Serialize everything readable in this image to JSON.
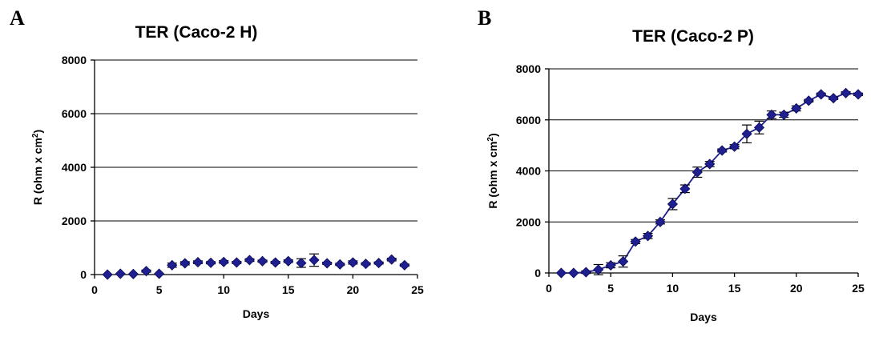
{
  "panels": {
    "a": {
      "letter": "A"
    },
    "b": {
      "letter": "B"
    }
  },
  "chart_data": [
    {
      "type": "line",
      "title": "TER (Caco-2 H)",
      "xlabel": "Days",
      "ylabel": "R (ohm x cm2)",
      "xlim": [
        0,
        25
      ],
      "ylim": [
        0,
        8000
      ],
      "xticks": [
        0,
        5,
        10,
        15,
        20,
        25
      ],
      "yticks": [
        0,
        2000,
        4000,
        6000,
        8000
      ],
      "grid": "horizontal",
      "marker_color": "#1f1f8f",
      "connect_points": false,
      "series": [
        {
          "x": [
            1,
            2,
            3,
            4,
            5,
            6,
            7,
            8,
            9,
            10,
            11,
            12,
            13,
            14,
            15,
            16,
            17,
            18,
            19,
            20,
            21,
            22,
            23,
            24
          ],
          "y": [
            0,
            30,
            20,
            130,
            30,
            350,
            420,
            460,
            440,
            470,
            450,
            540,
            500,
            450,
            500,
            430,
            540,
            420,
            380,
            450,
            400,
            430,
            560,
            350
          ],
          "err": [
            0,
            0,
            0,
            40,
            0,
            80,
            60,
            50,
            40,
            50,
            40,
            50,
            40,
            40,
            50,
            160,
            230,
            40,
            40,
            60,
            40,
            40,
            50,
            40
          ]
        }
      ]
    },
    {
      "type": "line",
      "title": "TER (Caco-2 P)",
      "xlabel": "Days",
      "ylabel": "R (ohm x cm2)",
      "xlim": [
        0,
        25
      ],
      "ylim": [
        0,
        8000
      ],
      "xticks": [
        0,
        5,
        10,
        15,
        20,
        25
      ],
      "yticks": [
        0,
        2000,
        4000,
        6000,
        8000
      ],
      "grid": "horizontal",
      "marker_color": "#1f1f8f",
      "connect_points": true,
      "series": [
        {
          "x": [
            1,
            2,
            3,
            4,
            5,
            6,
            7,
            8,
            9,
            10,
            11,
            12,
            13,
            14,
            15,
            16,
            17,
            18,
            19,
            20,
            21,
            22,
            23,
            24,
            25
          ],
          "y": [
            0,
            0,
            30,
            130,
            300,
            450,
            1230,
            1450,
            2000,
            2700,
            3300,
            3950,
            4270,
            4800,
            4950,
            5450,
            5700,
            6200,
            6200,
            6450,
            6750,
            7000,
            6850,
            7050,
            7000
          ],
          "err": [
            0,
            0,
            50,
            200,
            100,
            220,
            80,
            100,
            80,
            220,
            150,
            200,
            100,
            60,
            80,
            350,
            250,
            150,
            100,
            100,
            50,
            50,
            50,
            50,
            50
          ]
        }
      ]
    }
  ]
}
